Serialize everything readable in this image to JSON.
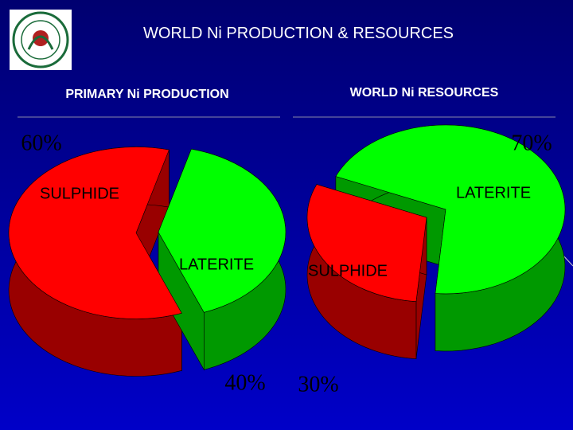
{
  "title": "WORLD Ni PRODUCTION & RESOURCES",
  "chart_data": [
    {
      "type": "pie",
      "title": "PRIMARY Ni PRODUCTION",
      "categories": [
        "SULPHIDE",
        "LATERITE"
      ],
      "values": [
        60,
        40
      ],
      "value_labels": [
        "60%",
        "40%"
      ],
      "colors": [
        "#ff0000",
        "#00ff00"
      ]
    },
    {
      "type": "pie",
      "title": "WORLD Ni RESOURCES",
      "categories": [
        "LATERITE",
        "SULPHIDE"
      ],
      "values": [
        70,
        30
      ],
      "value_labels": [
        "70%",
        "30%"
      ],
      "colors": [
        "#00ff00",
        "#ff0000"
      ]
    }
  ]
}
